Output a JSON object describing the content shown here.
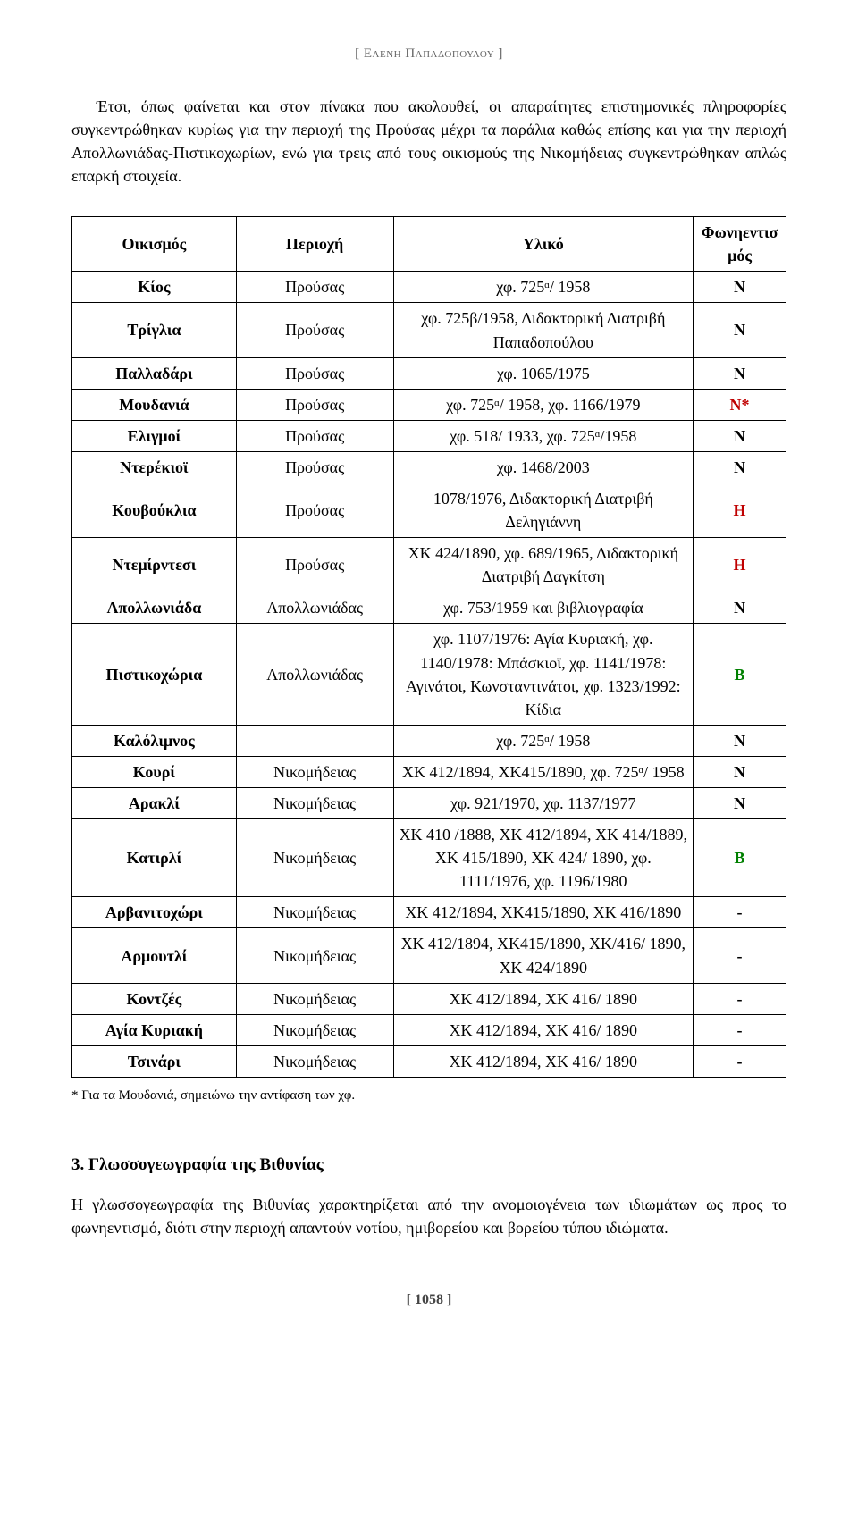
{
  "running_head": "[ Ελενη Παπαδοπουλου ]",
  "intro": "Έτσι, όπως φαίνεται και στον πίνακα που ακολουθεί, οι απαραίτητες επιστημονικές πληροφορίες συγκεντρώθηκαν κυρίως για την περιοχή της Προύσας μέχρι τα παράλια καθώς επίσης και για την περιοχή Απολλωνιάδας-Πιστικοχωρίων, ενώ για τρεις από τους οικισμούς της Νικομήδειας συγκεντρώθηκαν απλώς επαρκή στοιχεία.",
  "table": {
    "headers": [
      "Οικισμός",
      "Περιοχή",
      "Υλικό",
      "Φωνηεντισμός"
    ],
    "col_widths": [
      "23%",
      "22%",
      "42%",
      "13%"
    ],
    "rows": [
      {
        "c1": "Κίος",
        "c2": "Προύσας",
        "c3": "χφ. 725ᵅ/ 1958",
        "c4": "Ν",
        "cls": "c-n"
      },
      {
        "c1": "Τρίγλια",
        "c2": "Προύσας",
        "c3": "χφ. 725β/1958, Διδακτορική Διατριβή Παπαδοπούλου",
        "c4": "Ν",
        "cls": "c-n"
      },
      {
        "c1": "Παλλαδάρι",
        "c2": "Προύσας",
        "c3": "χφ. 1065/1975",
        "c4": "Ν",
        "cls": "c-n"
      },
      {
        "c1": "Μουδανιά",
        "c2": "Προύσας",
        "c3": "χφ. 725ᵅ/ 1958, χφ. 1166/1979",
        "c4": "Ν*",
        "cls": "c-nstar"
      },
      {
        "c1": "Ελιγμοί",
        "c2": "Προύσας",
        "c3": "χφ. 518/ 1933, χφ. 725ᵅ/1958",
        "c4": "Ν",
        "cls": "c-n"
      },
      {
        "c1": "Ντερέκιοϊ",
        "c2": "Προύσας",
        "c3": "χφ. 1468/2003",
        "c4": "Ν",
        "cls": "c-n"
      },
      {
        "c1": "Κουβούκλια",
        "c2": "Προύσας",
        "c3": "1078/1976, Διδακτορική Διατριβή Δεληγιάννη",
        "c4": "Η",
        "cls": "c-h"
      },
      {
        "c1": "Ντεμίρντεσι",
        "c2": "Προύσας",
        "c3": "ΧΚ 424/1890, χφ. 689/1965, Διδακτορική Διατριβή Δαγκίτση",
        "c4": "Η",
        "cls": "c-h"
      },
      {
        "c1": "Απολλωνιάδα",
        "c2": "Απολλωνιάδας",
        "c3": "χφ. 753/1959 και βιβλιογραφία",
        "c4": "Ν",
        "cls": "c-n"
      },
      {
        "c1": "Πιστικοχώρια",
        "c2": "Απολλωνιάδας",
        "c3": "χφ. 1107/1976: Αγία Κυριακή, χφ. 1140/1978: Μπάσκιοϊ, χφ. 1141/1978: Αγινάτοι, Κωνσταντινάτοι, χφ. 1323/1992: Κίδια",
        "c4": "Β",
        "cls": "c-b"
      },
      {
        "c1": "Καλόλιμνος",
        "c2": "",
        "c3": "χφ. 725ᵅ/ 1958",
        "c4": "Ν",
        "cls": "c-n"
      },
      {
        "c1": "Κουρί",
        "c2": "Νικομήδειας",
        "c3": "ΧΚ 412/1894, ΧΚ415/1890, χφ. 725ᵅ/ 1958",
        "c4": "Ν",
        "cls": "c-n"
      },
      {
        "c1": "Αρακλί",
        "c2": "Νικομήδειας",
        "c3": "χφ. 921/1970, χφ. 1137/1977",
        "c4": "Ν",
        "cls": "c-n"
      },
      {
        "c1": "Κατιρλί",
        "c2": "Νικομήδειας",
        "c3": "ΧΚ 410 /1888, ΧΚ 412/1894, ΧΚ 414/1889, ΧΚ 415/1890, ΧΚ 424/ 1890, χφ. 1111/1976, χφ. 1196/1980",
        "c4": "Β",
        "cls": "c-b"
      },
      {
        "c1": "Αρβανιτοχώρι",
        "c2": "Νικομήδειας",
        "c3": "ΧΚ 412/1894, ΧΚ415/1890, ΧΚ 416/1890",
        "c4": "-",
        "cls": "c-dash"
      },
      {
        "c1": "Αρμουτλί",
        "c2": "Νικομήδειας",
        "c3": "ΧΚ 412/1894, ΧΚ415/1890, ΧΚ/416/ 1890, ΧΚ 424/1890",
        "c4": "-",
        "cls": "c-dash"
      },
      {
        "c1": "Κοντζές",
        "c2": "Νικομήδειας",
        "c3": "ΧΚ 412/1894, ΧΚ 416/ 1890",
        "c4": "-",
        "cls": "c-dash"
      },
      {
        "c1": "Αγία Κυριακή",
        "c2": "Νικομήδειας",
        "c3": "ΧΚ 412/1894, ΧΚ 416/ 1890",
        "c4": "-",
        "cls": "c-dash"
      },
      {
        "c1": "Τσινάρι",
        "c2": "Νικομήδειας",
        "c3": "ΧΚ 412/1894, ΧΚ 416/ 1890",
        "c4": "-",
        "cls": "c-dash"
      }
    ]
  },
  "footnote": "* Για τα Μουδανιά, σημειώνω την αντίφαση των χφ.",
  "section_heading": "3.  Γλωσσογεωγραφία της Βιθυνίας",
  "section_body": "Η γλωσσογεωγραφία της Βιθυνίας χαρακτηρίζεται από την ανομοιογένεια των ιδιωμάτων ως προς το φωνηεντισμό, διότι στην περιοχή απαντούν νοτίου, ημιβορείου και βορείου τύπου ιδιώματα.",
  "page_number": "[ 1058 ]"
}
